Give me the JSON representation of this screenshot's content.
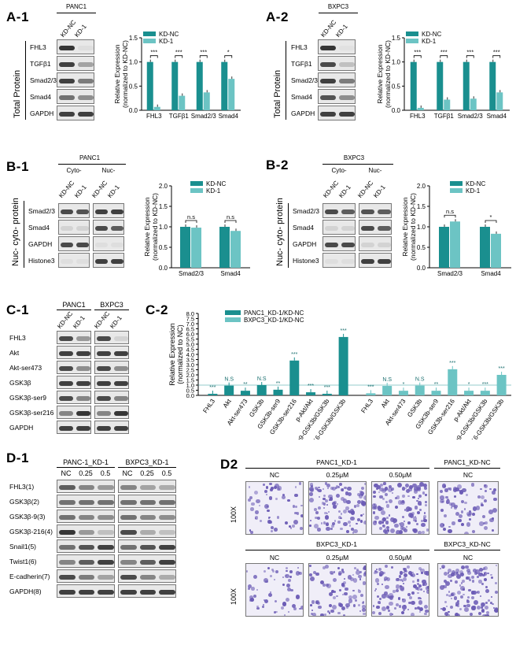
{
  "panels": {
    "A1": {
      "label": "A-1",
      "cell": "PANC1",
      "lanes": [
        "KD-NC",
        "KD-1"
      ],
      "rows": [
        "FHL3",
        "TGFβ1",
        "Smad2/3",
        "Smad4",
        "GAPDH"
      ],
      "side": "Total Protein"
    },
    "A2": {
      "label": "A-2",
      "cell": "BXPC3",
      "lanes": [
        "KD-NC",
        "KD-1"
      ],
      "rows": [
        "FHL3",
        "TGFβ1",
        "Smad2/3",
        "Smad4",
        "GAPDH"
      ],
      "side": "Total Protein"
    },
    "B1": {
      "label": "B-1",
      "cell": "PANC1",
      "frac1": "Cyto-",
      "frac2": "Nuc-",
      "lanes": [
        "KD-NC",
        "KD-1",
        "KD-NC",
        "KD-1"
      ],
      "rows": [
        "Smad2/3",
        "Smad4",
        "GAPDH",
        "Histone3"
      ],
      "side": "Nuc- cyto- protein"
    },
    "B2": {
      "label": "B-2",
      "cell": "BXPC3",
      "frac1": "Cyto-",
      "frac2": "Nuc-",
      "lanes": [
        "KD-NC",
        "KD-1",
        "KD-NC",
        "KD-1"
      ],
      "rows": [
        "Smad2/3",
        "Smad4",
        "GAPDH",
        "Histone3"
      ],
      "side": "Nuc- cyto- protein"
    },
    "C1": {
      "label": "C-1",
      "cell1": "PANC1",
      "cell2": "BXPC3",
      "lanes": [
        "KD-NC",
        "KD-1",
        "KD-NC",
        "KD-1"
      ],
      "rows": [
        "FHL3",
        "Akt",
        "Akt-ser473",
        "GSK3β",
        "GSK3β-ser9",
        "GSK3β-ser216",
        "GAPDH"
      ]
    },
    "C2": {
      "label": "C-2"
    },
    "D1": {
      "label": "D-1",
      "cell1": "PANC-1_KD-1",
      "cell2": "BXPC3_KD-1",
      "doses": [
        "NC",
        "0.25",
        "0.5",
        "NC",
        "0.25",
        "0.5"
      ],
      "rows": [
        "FHL3(1)",
        "GSK3β(2)",
        "GSK3β-9(3)",
        "GSK3β-216(4)",
        "Snail1(5)",
        "Twist1(6)",
        "E-cadherin(7)",
        "GAPDH(8)"
      ]
    },
    "D2": {
      "label": "D2",
      "row1_group": "PANC1_KD-1",
      "row1_ctrl": "PANC1_KD-NC",
      "row2_group": "BXPC3_KD-1",
      "row2_ctrl": "BXPC3_KD-NC",
      "cols": [
        "NC",
        "0.25μM",
        "0.50μM",
        "NC"
      ],
      "mag": "100X"
    }
  },
  "colors": {
    "kdnc": "#1a8f8f",
    "kd1": "#6cc4c4",
    "bar": "#2a9a9a",
    "purple": "#6b5bb5"
  },
  "chart_data": [
    {
      "type": "bar",
      "id": "A1",
      "categories": [
        "FHL3",
        "TGFβ1",
        "Smad2/3",
        "Smad4"
      ],
      "series": [
        {
          "name": "KD-NC",
          "values": [
            1,
            1,
            1,
            1
          ]
        },
        {
          "name": "KD-1",
          "values": [
            0.07,
            0.3,
            0.37,
            0.65
          ]
        }
      ],
      "sig": [
        "***",
        "***",
        "***",
        "*"
      ],
      "ylabel": "Relative Expression",
      "ylabel2": "(normalized to KD-NC)",
      "ylim": [
        0,
        1.5
      ],
      "yticks": [
        "0.0",
        "0.5",
        "1.0",
        "1.5"
      ]
    },
    {
      "type": "bar",
      "id": "A2",
      "categories": [
        "FHL3",
        "TGFβ1",
        "Smad2/3",
        "Smad4"
      ],
      "series": [
        {
          "name": "KD-NC",
          "values": [
            1,
            1,
            1,
            1
          ]
        },
        {
          "name": "KD-1",
          "values": [
            0.05,
            0.22,
            0.24,
            0.37
          ]
        }
      ],
      "sig": [
        "***",
        "***",
        "***",
        "***"
      ],
      "ylabel": "Relative Expression",
      "ylabel2": "(normalized to KD-NC)",
      "ylim": [
        0,
        1.5
      ],
      "yticks": [
        "0.0",
        "0.5",
        "1.0",
        "1.5"
      ]
    },
    {
      "type": "bar",
      "id": "B1",
      "categories": [
        "Smad2/3",
        "Smad4"
      ],
      "series": [
        {
          "name": "KD-NC",
          "values": [
            1,
            1
          ]
        },
        {
          "name": "KD-1",
          "values": [
            0.98,
            0.9
          ]
        }
      ],
      "sig": [
        "n.s",
        "n.s"
      ],
      "ylabel": "Relative Expression",
      "ylabel2": "(normalized to KD-NC)",
      "ylim": [
        0,
        2.0
      ],
      "yticks": [
        "0.0",
        "0.5",
        "1.0",
        "1.5",
        "2.0"
      ]
    },
    {
      "type": "bar",
      "id": "B2",
      "categories": [
        "Smad2/3",
        "Smad4"
      ],
      "series": [
        {
          "name": "KD-NC",
          "values": [
            1,
            1
          ]
        },
        {
          "name": "KD-1",
          "values": [
            1.13,
            0.83
          ]
        }
      ],
      "sig": [
        "n.s",
        "*"
      ],
      "ylabel": "Relative Expression",
      "ylabel2": "(normalized to KD-NC)",
      "ylim": [
        0,
        2.0
      ],
      "yticks": [
        "0.0",
        "0.5",
        "1.0",
        "1.5",
        "2.0"
      ]
    },
    {
      "type": "bar",
      "id": "C2",
      "categories": [
        "FHL3",
        "Akt",
        "Akt-ser473",
        "GSK3b",
        "GSK3b-ser9",
        "GSK3b-ser216",
        "p-Akt/Akt",
        "p9-GSK3b/GSK3b",
        "p216-GSK3b/GSK3b"
      ],
      "series": [
        {
          "name": "PANC1_KD-1/KD-NC",
          "values": [
            0.15,
            0.95,
            0.45,
            1.0,
            0.55,
            3.4,
            0.3,
            0.15,
            5.7
          ],
          "sig": [
            "***",
            "N.S",
            "**",
            "N.S",
            "**",
            "***",
            "***",
            "***",
            "***"
          ]
        },
        {
          "name": "BXPC3_KD-1/KD-NC",
          "values": [
            0.2,
            0.92,
            0.45,
            0.95,
            0.45,
            2.55,
            0.45,
            0.45,
            2.0
          ],
          "sig": [
            "***",
            "N.S",
            "*",
            "N.S",
            "**",
            "***",
            "*",
            "***",
            "***"
          ]
        }
      ],
      "ylabel": "Relative Expression",
      "ylabel2": "(normalized to NC)",
      "ylim": [
        0,
        8.0
      ],
      "yticks": [
        "0.0",
        "0.5",
        "1.0",
        "1.5",
        "2.0",
        "2.5",
        "3.0",
        "3.5",
        "4.0",
        "4.5",
        "5.0",
        "5.5",
        "6.0",
        "6.5",
        "7.0",
        "7.5",
        "8.0"
      ]
    }
  ]
}
